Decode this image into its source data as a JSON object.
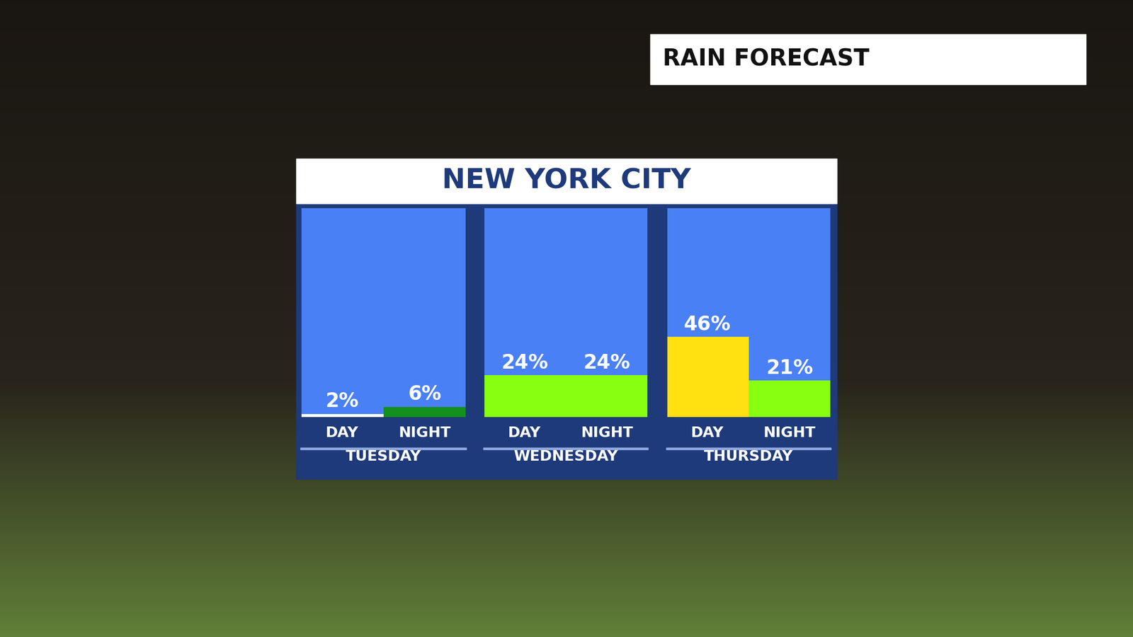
{
  "label": "RAIN FORECAST",
  "title": "NEW YORK CITY",
  "chart_data": [
    {
      "type": "bar",
      "xlabel": "TUESDAY",
      "categories": [
        "DAY",
        "NIGHT"
      ],
      "values": [
        2,
        6
      ],
      "value_labels": [
        "2%",
        "6%"
      ],
      "colors": [
        "#ffffff",
        "#14901c"
      ],
      "ylim": [
        0,
        120
      ],
      "data_labels": true,
      "tick_labels": "x"
    },
    {
      "type": "bar",
      "xlabel": "WEDNESDAY",
      "categories": [
        "DAY",
        "NIGHT"
      ],
      "values": [
        24,
        24
      ],
      "value_labels": [
        "24%",
        "24%"
      ],
      "colors": [
        "#88ff10",
        "#88ff10"
      ],
      "ylim": [
        0,
        120
      ],
      "data_labels": true,
      "tick_labels": "x"
    },
    {
      "type": "bar",
      "xlabel": "THURSDAY",
      "categories": [
        "DAY",
        "NIGHT"
      ],
      "values": [
        46,
        21
      ],
      "value_labels": [
        "46%",
        "21%"
      ],
      "colors": [
        "#ffe010",
        "#88ff10"
      ],
      "ylim": [
        0,
        120
      ],
      "data_labels": true,
      "tick_labels": "x"
    }
  ]
}
